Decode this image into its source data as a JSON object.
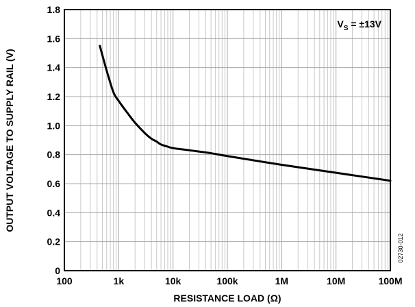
{
  "chart_data": {
    "type": "line",
    "xscale": "log",
    "xlabel": "RESISTANCE LOAD (Ω)",
    "ylabel": "OUTPUT VOLTAGE TO SUPPLY RAIL (V)",
    "xlim": [
      100,
      100000000
    ],
    "ylim": [
      0,
      1.8
    ],
    "grid": true,
    "x_ticks": [
      {
        "value": 100,
        "label": "100"
      },
      {
        "value": 1000,
        "label": "1k"
      },
      {
        "value": 10000,
        "label": "10k"
      },
      {
        "value": 100000,
        "label": "100k"
      },
      {
        "value": 1000000,
        "label": "1M"
      },
      {
        "value": 10000000,
        "label": "10M"
      },
      {
        "value": 100000000,
        "label": "100M"
      }
    ],
    "y_ticks": [
      {
        "value": 0,
        "label": "0"
      },
      {
        "value": 0.2,
        "label": "0.2"
      },
      {
        "value": 0.4,
        "label": "0.4"
      },
      {
        "value": 0.6,
        "label": "0.6"
      },
      {
        "value": 0.8,
        "label": "0.8"
      },
      {
        "value": 1.0,
        "label": "1.0"
      },
      {
        "value": 1.2,
        "label": "1.2"
      },
      {
        "value": 1.4,
        "label": "1.4"
      },
      {
        "value": 1.6,
        "label": "1.6"
      },
      {
        "value": 1.8,
        "label": "1.8"
      }
    ],
    "annotation": {
      "main": "V",
      "sub": "S",
      "rest": " = ±13V"
    },
    "figure_code": "02730-012",
    "series": [
      {
        "x": [
          450,
          600,
          800,
          1000,
          1500,
          2000,
          3000,
          4000,
          5000,
          6000,
          8000,
          10000,
          20000,
          50000,
          100000,
          1000000,
          10000000,
          100000000
        ],
        "y": [
          1.55,
          1.38,
          1.23,
          1.17,
          1.08,
          1.02,
          0.95,
          0.91,
          0.89,
          0.87,
          0.855,
          0.845,
          0.83,
          0.81,
          0.79,
          0.73,
          0.675,
          0.62
        ]
      }
    ]
  }
}
